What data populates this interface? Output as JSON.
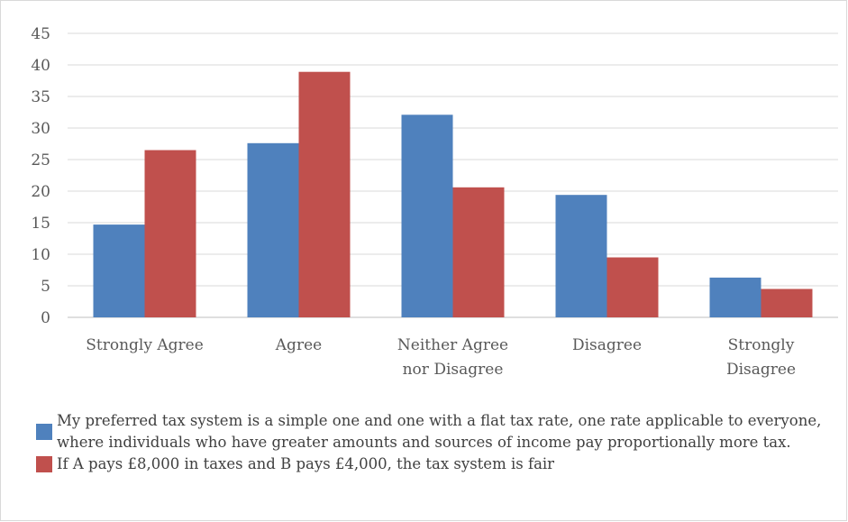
{
  "chart_data": {
    "type": "bar",
    "categories": [
      "Strongly Agree",
      "Agree",
      "Neither Agree nor Disagree",
      "Disagree",
      "Strongly Disagree"
    ],
    "category_lines": [
      [
        "Strongly Agree"
      ],
      [
        "Agree"
      ],
      [
        "Neither Agree",
        "nor Disagree"
      ],
      [
        "Disagree"
      ],
      [
        "Strongly",
        "Disagree"
      ]
    ],
    "series": [
      {
        "name": "My preferred tax system is a simple one and one with a flat tax rate, one rate applicable to everyone, where individuals who have greater amounts and sources of income pay  proportionally more tax.",
        "color": "#4f81bd",
        "values": [
          14.7,
          27.6,
          32.1,
          19.4,
          6.3
        ]
      },
      {
        "name": "If A pays £8,000 in taxes and B pays £4,000, the tax system is fair",
        "color": "#c0504d",
        "values": [
          26.5,
          38.9,
          20.6,
          9.5,
          4.5
        ]
      }
    ],
    "yticks": [
      0,
      5,
      10,
      15,
      20,
      25,
      30,
      35,
      40,
      45
    ],
    "ylim": [
      0,
      45
    ],
    "grid": true,
    "legend_position": "bottom",
    "title": "",
    "xlabel": "",
    "ylabel": ""
  }
}
